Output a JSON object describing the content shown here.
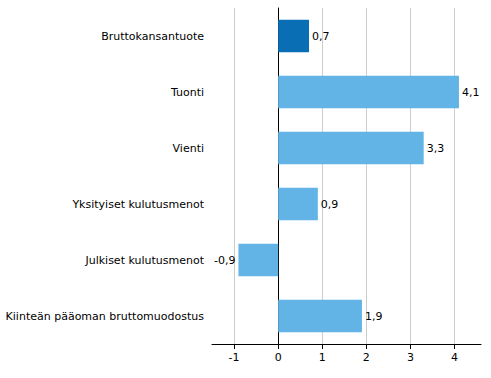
{
  "chart_data": {
    "type": "bar",
    "orientation": "horizontal",
    "categories": [
      "Bruttokansantuote",
      "Tuonti",
      "Vienti",
      "Yksityiset kulutusmenot",
      "Julkiset kulutusmenot",
      "Kiinteän pääoman bruttomuodostus"
    ],
    "values": [
      0.7,
      4.1,
      3.3,
      0.9,
      -0.9,
      1.9
    ],
    "value_labels": [
      "0,7",
      "4,1",
      "3,3",
      "0,9",
      "-0,9",
      "1,9"
    ],
    "colors": [
      "#0a6eb4",
      "#62b4e6",
      "#62b4e6",
      "#62b4e6",
      "#62b4e6",
      "#62b4e6"
    ],
    "xlim": [
      -1.5,
      4.6
    ],
    "xticks": [
      -1,
      0,
      1,
      2,
      3,
      4
    ],
    "grid": true,
    "data_labels": true
  }
}
